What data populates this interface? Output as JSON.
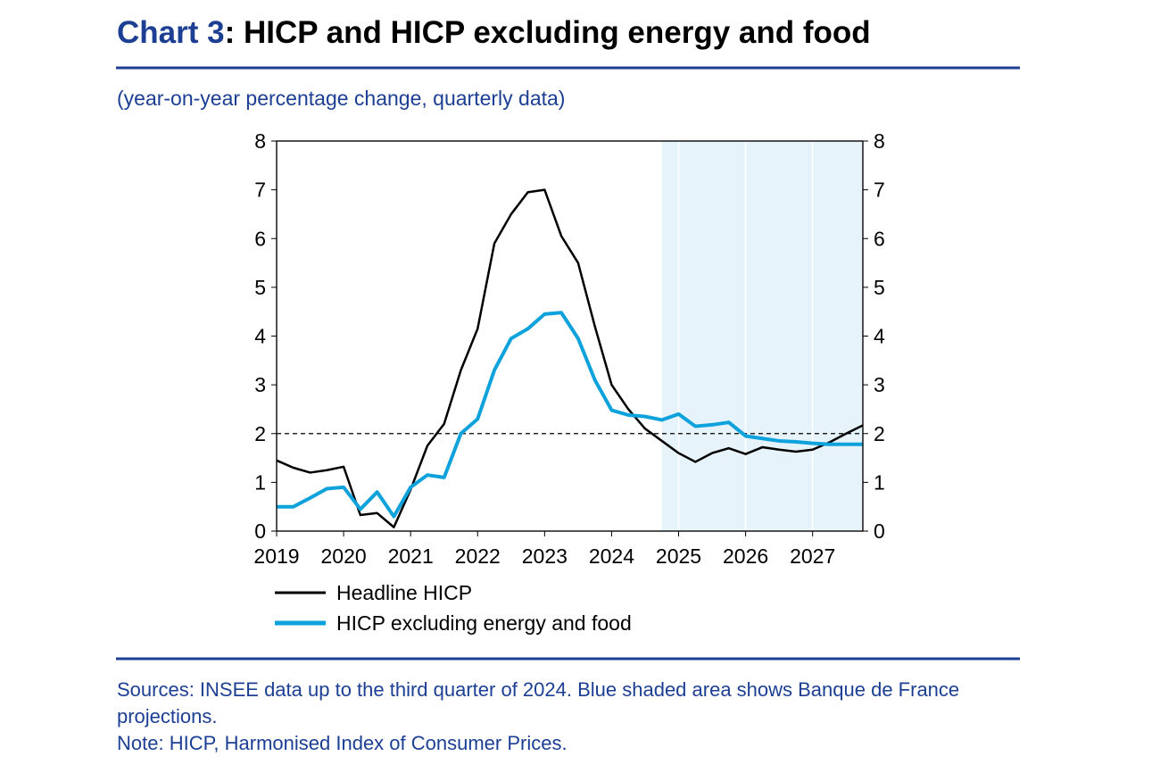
{
  "chart_data": {
    "type": "line",
    "title_label": "Chart 3",
    "title": ": HICP and HICP excluding energy and food",
    "subtitle": "(year-on-year percentage change, quarterly data)",
    "x": [
      2019,
      2019.25,
      2019.5,
      2019.75,
      2020,
      2020.25,
      2020.5,
      2020.75,
      2021,
      2021.25,
      2021.5,
      2021.75,
      2022,
      2022.25,
      2022.5,
      2022.75,
      2023,
      2023.25,
      2023.5,
      2023.75,
      2024,
      2024.25,
      2024.5,
      2024.75,
      2025,
      2025.25,
      2025.5,
      2025.75,
      2026,
      2026.25,
      2026.5,
      2026.75,
      2027,
      2027.25,
      2027.5,
      2027.75
    ],
    "series": [
      {
        "name": "Headline HICP",
        "color": "#000000",
        "values": [
          1.45,
          1.3,
          1.2,
          1.25,
          1.32,
          0.33,
          0.37,
          0.08,
          0.85,
          1.75,
          2.2,
          3.3,
          4.15,
          5.9,
          6.5,
          6.95,
          7.0,
          6.05,
          5.5,
          4.2,
          3.0,
          2.5,
          2.1,
          1.85,
          1.6,
          1.42,
          1.6,
          1.7,
          1.58,
          1.72,
          1.67,
          1.63,
          1.67,
          1.82,
          2.0,
          2.17
        ]
      },
      {
        "name": "HICP excluding energy and food",
        "color": "#0ea2dc",
        "values": [
          0.5,
          0.5,
          0.68,
          0.87,
          0.9,
          0.45,
          0.8,
          0.3,
          0.9,
          1.15,
          1.1,
          2.0,
          2.3,
          3.3,
          3.95,
          4.15,
          4.45,
          4.48,
          3.95,
          3.1,
          2.48,
          2.38,
          2.35,
          2.28,
          2.4,
          2.15,
          2.18,
          2.23,
          1.95,
          1.9,
          1.85,
          1.83,
          1.8,
          1.78,
          1.78,
          1.78
        ]
      }
    ],
    "xlim": [
      2019,
      2027.75
    ],
    "xticks": [
      2019,
      2020,
      2021,
      2022,
      2023,
      2024,
      2025,
      2026,
      2027
    ],
    "ylim": [
      0,
      8
    ],
    "yticks": [
      0,
      1,
      2,
      3,
      4,
      5,
      6,
      7,
      8
    ],
    "projection_start": 2024.75,
    "reference_line": 2,
    "sources": "Sources: INSEE data up to the third quarter of 2024. Blue shaded area shows Banque de France projections.",
    "note": "Note: HICP, Harmonised Index of Consumer Prices."
  }
}
